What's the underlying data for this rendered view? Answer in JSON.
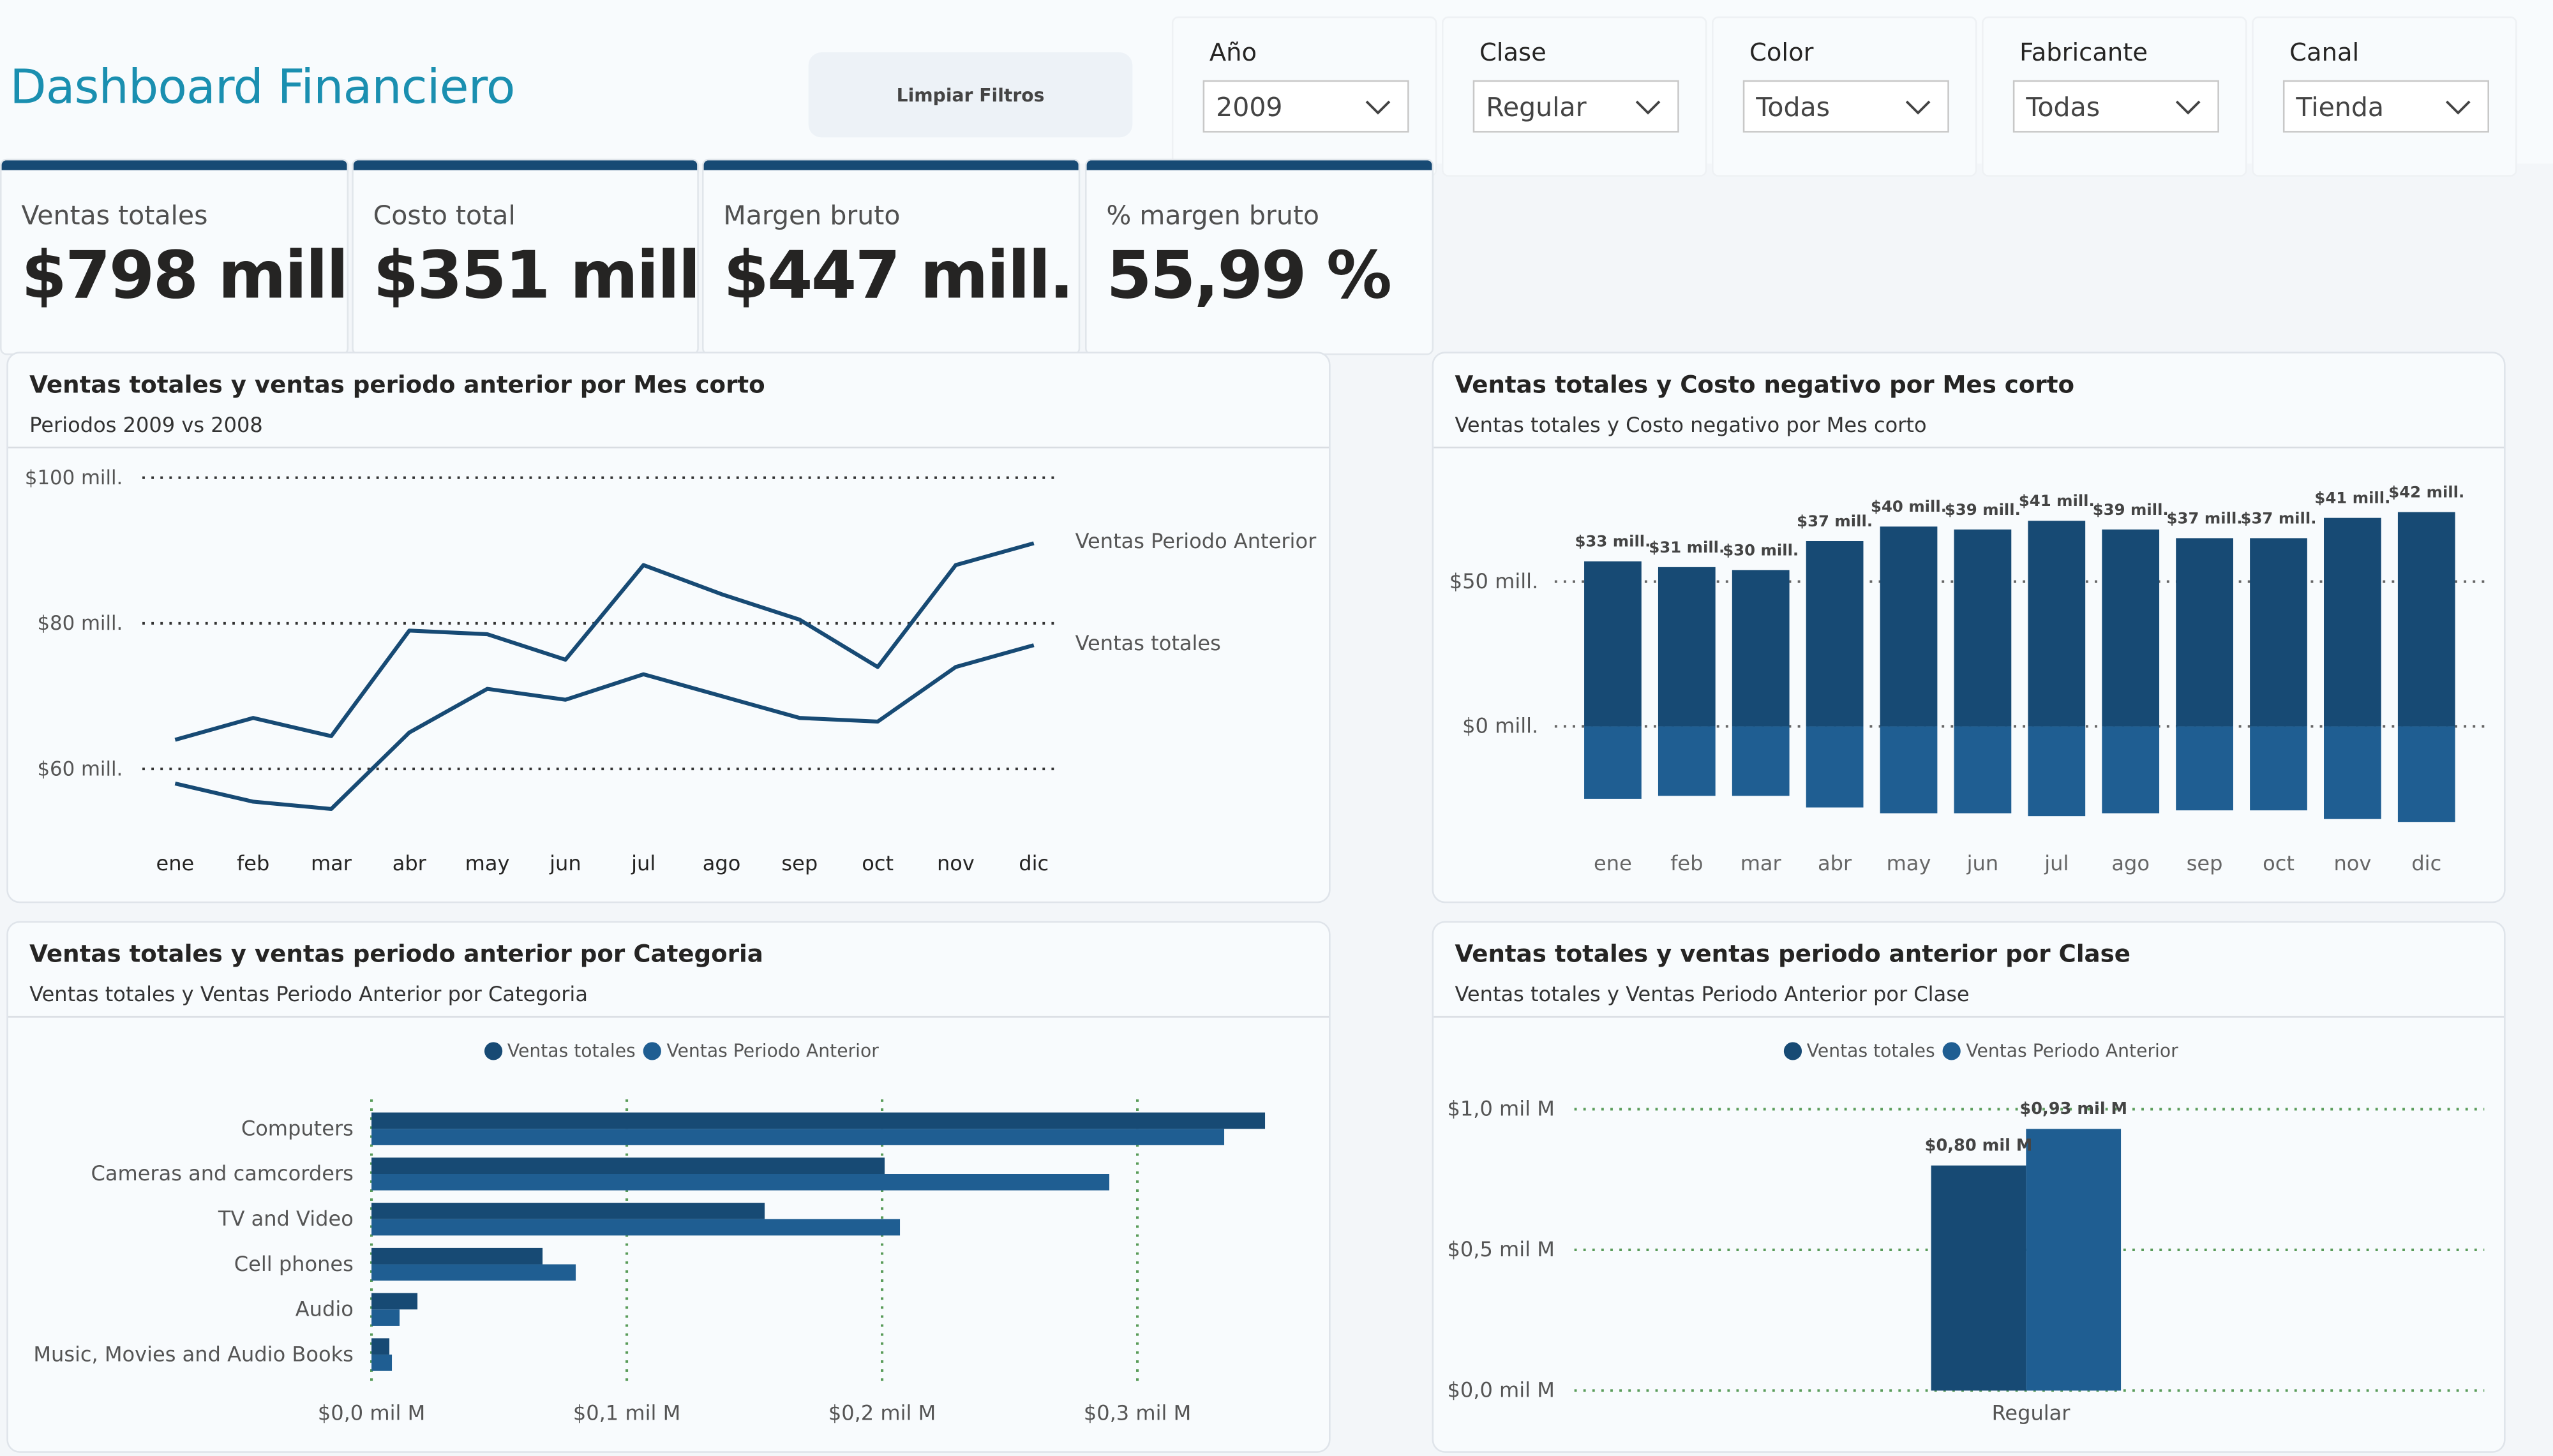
{
  "header": {
    "title": "Dashboard Financiero",
    "clear_filters": "Limpiar Filtros"
  },
  "slicers": [
    {
      "label": "Año",
      "value": "2009"
    },
    {
      "label": "Clase",
      "value": "Regular"
    },
    {
      "label": "Color",
      "value": "Todas"
    },
    {
      "label": "Fabricante",
      "value": "Todas"
    },
    {
      "label": "Canal",
      "value": "Tienda"
    }
  ],
  "kpis": [
    {
      "label": "Ventas totales",
      "value": "$798 mill."
    },
    {
      "label": "Costo total",
      "value": "$351 mill."
    },
    {
      "label": "Margen bruto",
      "value": "$447 mill."
    },
    {
      "label": "% margen bruto",
      "value": "55,99 %"
    }
  ],
  "colors": {
    "dark_blue": "#174a74",
    "mid_blue": "#1f5e92",
    "kpi_bar": "#174a74",
    "title_teal": "#1a8fb0",
    "gridline_green": "#5a9c5a"
  },
  "panels": {
    "line": {
      "title": "Ventas totales y ventas periodo anterior por Mes corto",
      "subtitle": "Periodos 2009 vs 2008"
    },
    "bar_cost": {
      "title": "Ventas totales y Costo negativo por Mes corto",
      "subtitle": "Ventas totales y Costo negativo por Mes corto"
    },
    "category": {
      "title": "Ventas totales y ventas periodo anterior por Categoria",
      "subtitle": "Ventas totales y Ventas Periodo Anterior por Categoria",
      "legend": [
        "Ventas totales",
        "Ventas Periodo Anterior"
      ]
    },
    "clase": {
      "title": "Ventas totales y ventas periodo anterior por Clase",
      "subtitle": "Ventas totales y Ventas Periodo Anterior por Clase",
      "legend": [
        "Ventas totales",
        "Ventas Periodo Anterior"
      ]
    }
  },
  "chart_data": [
    {
      "type": "line",
      "title": "Ventas totales y ventas periodo anterior por Mes corto",
      "subtitle": "Periodos 2009 vs 2008",
      "categories": [
        "ene",
        "feb",
        "mar",
        "abr",
        "may",
        "jun",
        "jul",
        "ago",
        "sep",
        "oct",
        "nov",
        "dic"
      ],
      "series": [
        {
          "name": "Ventas Periodo Anterior",
          "values": [
            64,
            67,
            64.5,
            79,
            78.5,
            75,
            88,
            84,
            80.5,
            74,
            88,
            91
          ]
        },
        {
          "name": "Ventas totales",
          "values": [
            58,
            55.5,
            54.5,
            65,
            71,
            69.5,
            73,
            70,
            67,
            66.5,
            74,
            77
          ]
        }
      ],
      "ylim": [
        60,
        100
      ],
      "yticks": [
        60,
        80,
        100
      ],
      "ytick_labels": [
        "$60 mill.",
        "$80 mill.",
        "$100 mill."
      ],
      "grid": true,
      "legend": "right, inline end labels"
    },
    {
      "type": "bar",
      "title": "Ventas totales y Costo negativo por Mes corto",
      "subtitle": "Ventas totales y Costo negativo por Mes corto",
      "categories": [
        "ene",
        "feb",
        "mar",
        "abr",
        "may",
        "jun",
        "jul",
        "ago",
        "sep",
        "oct",
        "nov",
        "dic"
      ],
      "series": [
        {
          "name": "Ventas totales",
          "values": [
            57,
            55,
            54,
            64,
            69,
            68,
            71,
            68,
            65,
            65,
            72,
            74
          ]
        },
        {
          "name": "Costo negativo",
          "values": [
            -25,
            -24,
            -24,
            -28,
            -30,
            -30,
            -31,
            -30,
            -29,
            -29,
            -32,
            -33
          ]
        }
      ],
      "data_labels": [
        "$33 mill.",
        "$31 mill.",
        "$30 mill.",
        "$37 mill.",
        "$40 mill.",
        "$39 mill.",
        "$41 mill.",
        "$39 mill.",
        "$37 mill.",
        "$37 mill.",
        "$41 mill.",
        "$42 mill."
      ],
      "yticks": [
        0,
        50
      ],
      "ytick_labels": [
        "$0 mill.",
        "$50 mill."
      ],
      "stacked": true,
      "grid": true
    },
    {
      "type": "bar",
      "orientation": "horizontal",
      "title": "Ventas totales y ventas periodo anterior por Categoria",
      "subtitle": "Ventas totales y Ventas Periodo Anterior por Categoria",
      "categories": [
        "Computers",
        "Cameras and camcorders",
        "TV and Video",
        "Cell phones",
        "Audio",
        "Music, Movies and Audio Books"
      ],
      "series": [
        {
          "name": "Ventas totales",
          "values": [
            0.35,
            0.201,
            0.154,
            0.067,
            0.018,
            0.007
          ]
        },
        {
          "name": "Ventas Periodo Anterior",
          "values": [
            0.334,
            0.289,
            0.207,
            0.08,
            0.011,
            0.008
          ]
        }
      ],
      "xlim": [
        0,
        0.35
      ],
      "xticks": [
        0,
        0.1,
        0.2,
        0.3
      ],
      "xtick_labels": [
        "$0,0 mil M",
        "$0,1 mil M",
        "$0,2 mil M",
        "$0,3 mil M"
      ],
      "grid": true,
      "legend": "top-center"
    },
    {
      "type": "bar",
      "title": "Ventas totales y ventas periodo anterior por Clase",
      "subtitle": "Ventas totales y Ventas Periodo Anterior por Clase",
      "categories": [
        "Regular"
      ],
      "series": [
        {
          "name": "Ventas totales",
          "values": [
            0.8
          ]
        },
        {
          "name": "Ventas Periodo Anterior",
          "values": [
            0.93
          ]
        }
      ],
      "data_labels": [
        "$0,80 mil M",
        "$0,93 mil M"
      ],
      "ylim": [
        0,
        1.0
      ],
      "yticks": [
        0,
        0.5,
        1.0
      ],
      "ytick_labels": [
        "$0,0 mil M",
        "$0,5 mil M",
        "$1,0 mil M"
      ],
      "grid": true,
      "legend": "top-center"
    }
  ]
}
